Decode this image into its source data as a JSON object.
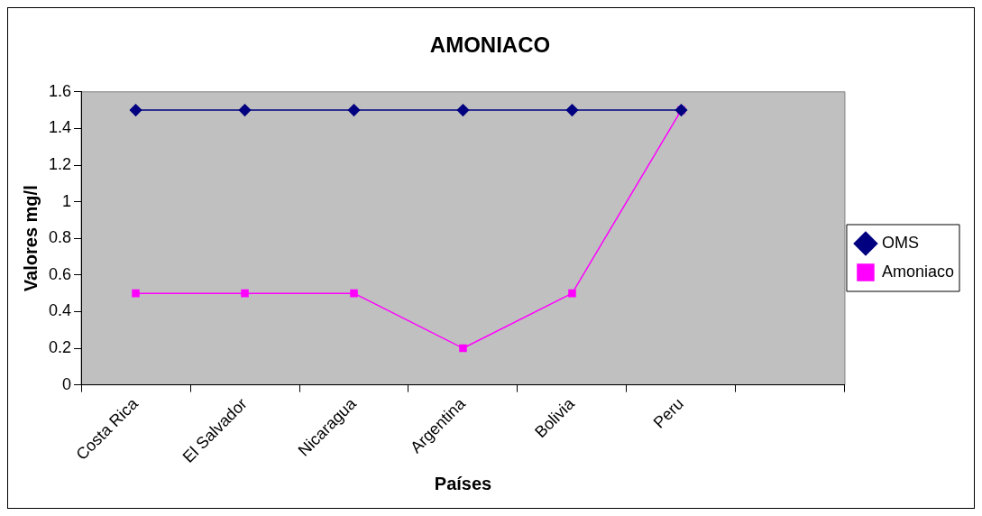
{
  "chart_data": {
    "type": "line",
    "title": "AMONIACO",
    "xlabel": "Países",
    "ylabel": "Valores mg/l",
    "categories": [
      "Costa Rica",
      "El Salvador",
      "Nicaragua",
      "Argentina",
      "Bolivia",
      "Peru",
      null
    ],
    "series": [
      {
        "name": "Amoniaco",
        "color": "#ff00ff",
        "marker": "square",
        "values": [
          0.5,
          0.5,
          0.5,
          0.2,
          0.5,
          1.5,
          null
        ]
      },
      {
        "name": "OMS",
        "color": "#000080",
        "marker": "diamond",
        "values": [
          1.5,
          1.5,
          1.5,
          1.5,
          1.5,
          1.5,
          null
        ]
      }
    ],
    "ylim": [
      0,
      1.6
    ],
    "yticks": [
      0,
      0.2,
      0.4,
      0.6,
      0.8,
      1,
      1.2,
      1.4,
      1.6
    ],
    "grid": false,
    "legend": "right",
    "line_style": "solid"
  }
}
